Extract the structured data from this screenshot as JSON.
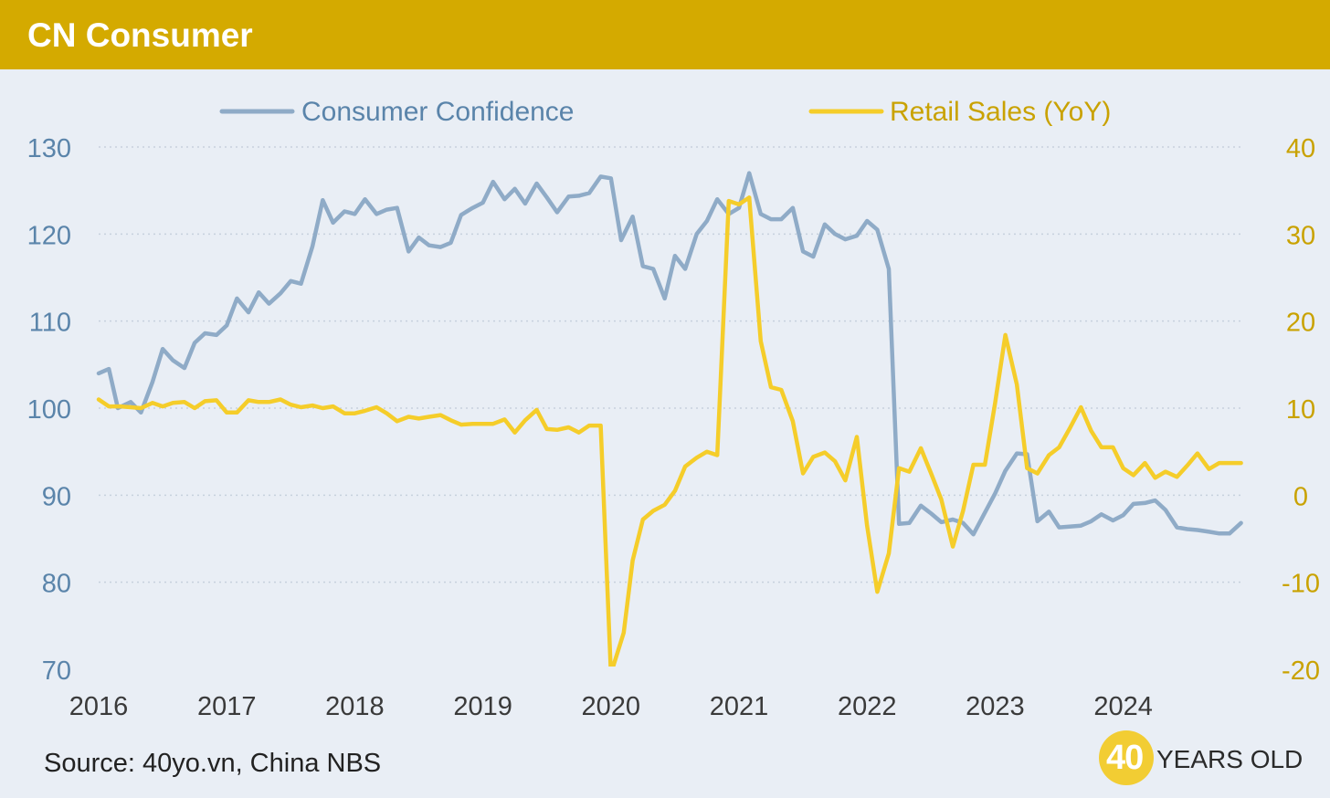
{
  "header": {
    "title": "CN Consumer"
  },
  "source": "Source: 40yo.vn, China NBS",
  "logo": {
    "number": "40",
    "text": "YEARS OLD"
  },
  "colors": {
    "banner": "#d4aa00",
    "background": "#e9eef5",
    "confidence": "#8fabc7",
    "retail": "#f5cd2a",
    "left_axis_text": "#5a84aa",
    "right_axis_text": "#c9a200"
  },
  "chart_data": {
    "type": "line",
    "title": "",
    "legend_position": "top",
    "grid": true,
    "x_ticks": [
      "2016",
      "2017",
      "2018",
      "2019",
      "2020",
      "2021",
      "2022",
      "2023",
      "2024"
    ],
    "y_left": {
      "ylim": [
        70,
        130
      ],
      "ticks": [
        "130",
        "120",
        "110",
        "100",
        "90",
        "80",
        "70"
      ]
    },
    "y_right": {
      "ylim": [
        -20,
        40
      ],
      "ticks": [
        "40",
        "30",
        "20",
        "10",
        "0",
        "-10",
        "-20"
      ]
    },
    "series": [
      {
        "name": "Consumer Confidence",
        "axis": "left",
        "x": [
          2016.0,
          2016.08,
          2016.15,
          2016.25,
          2016.33,
          2016.42,
          2016.5,
          2016.58,
          2016.67,
          2016.75,
          2016.83,
          2016.92,
          2017.0,
          2017.08,
          2017.17,
          2017.25,
          2017.33,
          2017.42,
          2017.5,
          2017.58,
          2017.67,
          2017.75,
          2017.83,
          2017.92,
          2018.0,
          2018.08,
          2018.17,
          2018.25,
          2018.33,
          2018.42,
          2018.5,
          2018.58,
          2018.67,
          2018.75,
          2018.83,
          2018.92,
          2019.0,
          2019.08,
          2019.17,
          2019.25,
          2019.33,
          2019.42,
          2019.5,
          2019.58,
          2019.67,
          2019.75,
          2019.83,
          2019.92,
          2020.0,
          2020.08,
          2020.17,
          2020.25,
          2020.33,
          2020.42,
          2020.5,
          2020.58,
          2020.67,
          2020.75,
          2020.83,
          2020.92,
          2021.0,
          2021.08,
          2021.17,
          2021.25,
          2021.33,
          2021.42,
          2021.5,
          2021.58,
          2021.67,
          2021.75,
          2021.83,
          2021.92,
          2022.0,
          2022.08,
          2022.17,
          2022.25,
          2022.33,
          2022.42,
          2022.5,
          2022.58,
          2022.67,
          2022.75,
          2022.83,
          2022.92,
          2023.0,
          2023.08,
          2023.17,
          2023.25,
          2023.33,
          2023.42,
          2023.5,
          2023.58,
          2023.67,
          2023.75,
          2023.83,
          2023.92,
          2024.0,
          2024.08,
          2024.17,
          2024.25,
          2024.33,
          2024.42,
          2024.5,
          2024.58,
          2024.67,
          2024.75,
          2024.83,
          2024.92
        ],
        "values": [
          104.0,
          104.5,
          100.0,
          100.7,
          99.5,
          103.0,
          106.8,
          105.5,
          104.6,
          107.5,
          108.6,
          108.4,
          109.5,
          112.6,
          111.0,
          113.3,
          112.0,
          113.2,
          114.6,
          114.3,
          118.6,
          123.9,
          121.3,
          122.6,
          122.3,
          124.0,
          122.3,
          122.8,
          123.0,
          118.0,
          119.6,
          118.7,
          118.5,
          119.0,
          122.2,
          123.0,
          123.6,
          126.0,
          124.0,
          125.2,
          123.5,
          125.8,
          124.2,
          122.5,
          124.3,
          124.4,
          124.7,
          126.6,
          126.4,
          119.3,
          122.0,
          116.3,
          116.0,
          112.6,
          117.5,
          116.0,
          120.0,
          121.5,
          124.0,
          122.3,
          123.0,
          127.0,
          122.3,
          121.7,
          121.7,
          123.0,
          118.0,
          117.4,
          121.1,
          120.0,
          119.4,
          119.8,
          121.5,
          120.5,
          116.0,
          86.7,
          86.8,
          88.8,
          87.9,
          86.9,
          87.2,
          86.8,
          85.5,
          88.0,
          90.2,
          92.8,
          94.8,
          94.7,
          87.0,
          88.1,
          86.3,
          86.4,
          86.5,
          87.0,
          87.8,
          87.1,
          87.7,
          89.0,
          89.1,
          89.4,
          88.3,
          86.3,
          86.1,
          86.0,
          85.8,
          85.6,
          85.6,
          86.8
        ]
      },
      {
        "name": "Retail Sales (YoY)",
        "axis": "right",
        "x": [
          2016.0,
          2016.08,
          2016.17,
          2016.25,
          2016.33,
          2016.42,
          2016.5,
          2016.58,
          2016.67,
          2016.75,
          2016.83,
          2016.92,
          2017.0,
          2017.08,
          2017.17,
          2017.25,
          2017.33,
          2017.42,
          2017.5,
          2017.58,
          2017.67,
          2017.75,
          2017.83,
          2017.92,
          2018.0,
          2018.08,
          2018.17,
          2018.25,
          2018.33,
          2018.42,
          2018.5,
          2018.58,
          2018.67,
          2018.75,
          2018.83,
          2018.92,
          2019.0,
          2019.08,
          2019.17,
          2019.25,
          2019.33,
          2019.42,
          2019.5,
          2019.58,
          2019.67,
          2019.75,
          2019.83,
          2019.92,
          2020.0,
          2020.1,
          2020.17,
          2020.25,
          2020.33,
          2020.42,
          2020.5,
          2020.58,
          2020.67,
          2020.75,
          2020.83,
          2020.92,
          2021.0,
          2021.08,
          2021.17,
          2021.25,
          2021.33,
          2021.42,
          2021.5,
          2021.58,
          2021.67,
          2021.75,
          2021.83,
          2021.92,
          2022.0,
          2022.08,
          2022.17,
          2022.25,
          2022.33,
          2022.42,
          2022.5,
          2022.58,
          2022.67,
          2022.75,
          2022.83,
          2022.92,
          2023.0,
          2023.08,
          2023.17,
          2023.25,
          2023.33,
          2023.42,
          2023.5,
          2023.58,
          2023.67,
          2023.75,
          2023.83,
          2023.92,
          2024.0,
          2024.08,
          2024.17,
          2024.25,
          2024.33,
          2024.42,
          2024.5,
          2024.58,
          2024.67,
          2024.75,
          2024.83,
          2024.92
        ],
        "values": [
          11.0,
          10.2,
          10.2,
          10.1,
          10.0,
          10.6,
          10.2,
          10.6,
          10.7,
          10.0,
          10.8,
          10.9,
          9.5,
          9.5,
          10.9,
          10.7,
          10.7,
          11.0,
          10.4,
          10.1,
          10.3,
          10.0,
          10.2,
          9.4,
          9.4,
          9.7,
          10.1,
          9.4,
          8.5,
          9.0,
          8.8,
          9.0,
          9.2,
          8.6,
          8.1,
          8.2,
          8.2,
          8.2,
          8.7,
          7.2,
          8.6,
          9.8,
          7.6,
          7.5,
          7.8,
          7.2,
          8.0,
          8.0,
          -20.5,
          -15.8,
          -7.5,
          -2.8,
          -1.8,
          -1.1,
          0.5,
          3.3,
          4.3,
          5.0,
          4.6,
          33.8,
          33.4,
          34.2,
          17.7,
          12.4,
          12.1,
          8.5,
          2.5,
          4.4,
          4.9,
          3.9,
          1.7,
          6.7,
          -3.5,
          -11.1,
          -6.7,
          3.1,
          2.7,
          5.4,
          2.5,
          -0.5,
          -5.9,
          -1.8,
          3.5,
          3.5,
          10.6,
          18.4,
          12.7,
          3.1,
          2.5,
          4.6,
          5.5,
          7.6,
          10.1,
          7.4,
          5.5,
          5.5,
          3.1,
          2.3,
          3.7,
          2.0,
          2.7,
          2.1,
          3.4,
          4.8,
          3.0,
          3.7,
          3.7,
          3.7
        ]
      }
    ]
  }
}
